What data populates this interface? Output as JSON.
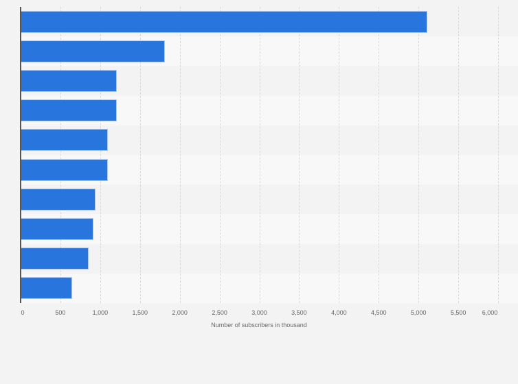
{
  "chart_data": {
    "type": "bar",
    "orientation": "horizontal",
    "title": "",
    "xlabel": "Number of subscribers in thousand",
    "ylabel": "",
    "categories": [
      "",
      "",
      "",
      "",
      "",
      "",
      "",
      "",
      "",
      ""
    ],
    "values": [
      5100,
      1800,
      1200,
      1200,
      1090,
      1090,
      930,
      910,
      850,
      640
    ],
    "xlim": [
      0,
      6000
    ],
    "xticks": [
      0,
      500,
      1000,
      1500,
      2000,
      2500,
      3000,
      3500,
      4000,
      4500,
      5000,
      5500,
      6000
    ],
    "xtick_labels": [
      "0",
      "500",
      "1,000",
      "1,500",
      "2,000",
      "2,500",
      "3,000",
      "3,500",
      "4,000",
      "4,500",
      "5,000",
      "5,500",
      "6,000"
    ],
    "grid": true,
    "legend": null,
    "bar_color": "#2876dd",
    "band_colors": [
      "#f3f3f3",
      "#f8f8f8"
    ]
  },
  "axis": {
    "title": "Number of subscribers in thousand"
  }
}
